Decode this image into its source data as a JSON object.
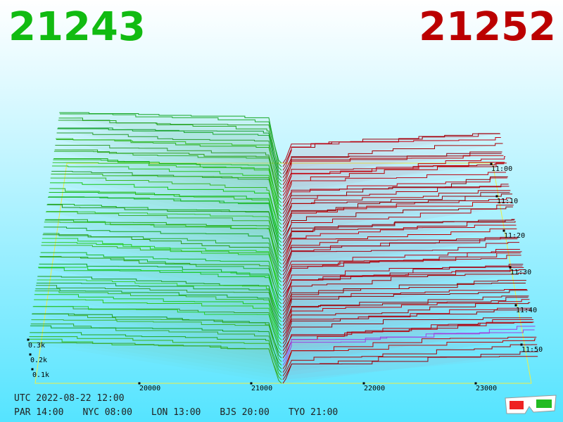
{
  "header": {
    "bid": "21243",
    "ask": "21252"
  },
  "price_axis": [
    "20000",
    "21000",
    "22000",
    "23000"
  ],
  "time_axis": [
    "11:00",
    "11:10",
    "11:20",
    "11:30",
    "11:40",
    "11:50"
  ],
  "depth_axis": [
    "0.3k",
    "0.2k",
    "0.1k"
  ],
  "footer": {
    "utc": "UTC 2022-08-22 12:00",
    "cities": [
      "PAR 14:00",
      "NYC 08:00",
      "LON 13:00",
      "BJS 20:00",
      "TYO 21:00"
    ]
  }
}
